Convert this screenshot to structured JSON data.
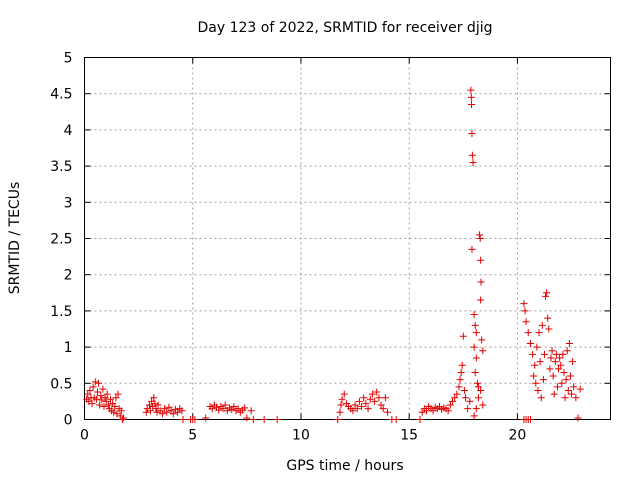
{
  "chart_data": {
    "type": "scatter",
    "title": "Day 123 of 2022, SRMTID for receiver djig",
    "xlabel": "GPS time / hours",
    "ylabel": "SRMTID / TECUs",
    "xlim": [
      0,
      24.3
    ],
    "ylim": [
      0,
      5
    ],
    "xticks": [
      0,
      5,
      10,
      15,
      20
    ],
    "xtick_labels": [
      "0",
      "5",
      "10",
      "15",
      "20"
    ],
    "yticks": [
      0,
      0.5,
      1,
      1.5,
      2,
      2.5,
      3,
      3.5,
      4,
      4.5,
      5
    ],
    "ytick_labels": [
      "0",
      "0.5",
      "1",
      "1.5",
      "2",
      "2.5",
      "3",
      "3.5",
      "4",
      "4.5",
      "5"
    ],
    "grid": true,
    "marker": "+",
    "marker_color": "#e00000",
    "series": [
      {
        "name": "SRMTID",
        "points": [
          [
            0.1,
            0.28
          ],
          [
            0.15,
            0.35
          ],
          [
            0.2,
            0.25
          ],
          [
            0.25,
            0.4
          ],
          [
            0.3,
            0.3
          ],
          [
            0.35,
            0.22
          ],
          [
            0.4,
            0.45
          ],
          [
            0.45,
            0.3
          ],
          [
            0.5,
            0.52
          ],
          [
            0.55,
            0.28
          ],
          [
            0.6,
            0.38
          ],
          [
            0.65,
            0.5
          ],
          [
            0.7,
            0.2
          ],
          [
            0.75,
            0.33
          ],
          [
            0.8,
            0.27
          ],
          [
            0.85,
            0.42
          ],
          [
            0.9,
            0.18
          ],
          [
            0.95,
            0.3
          ],
          [
            1.0,
            0.25
          ],
          [
            1.05,
            0.35
          ],
          [
            1.1,
            0.2
          ],
          [
            1.15,
            0.15
          ],
          [
            1.2,
            0.28
          ],
          [
            1.25,
            0.12
          ],
          [
            1.3,
            0.22
          ],
          [
            1.35,
            0.1
          ],
          [
            1.4,
            0.18
          ],
          [
            1.45,
            0.3
          ],
          [
            1.5,
            0.08
          ],
          [
            1.55,
            0.35
          ],
          [
            1.6,
            0.15
          ],
          [
            1.65,
            0.05
          ],
          [
            1.7,
            0.12
          ],
          [
            1.75,
            0.0
          ],
          [
            1.8,
            0.02
          ],
          [
            2.85,
            0.1
          ],
          [
            2.9,
            0.15
          ],
          [
            3.0,
            0.2
          ],
          [
            3.05,
            0.12
          ],
          [
            3.1,
            0.25
          ],
          [
            3.15,
            0.18
          ],
          [
            3.2,
            0.3
          ],
          [
            3.25,
            0.22
          ],
          [
            3.3,
            0.15
          ],
          [
            3.35,
            0.1
          ],
          [
            3.4,
            0.2
          ],
          [
            3.5,
            0.12
          ],
          [
            3.6,
            0.08
          ],
          [
            3.7,
            0.15
          ],
          [
            3.8,
            0.1
          ],
          [
            3.9,
            0.17
          ],
          [
            4.0,
            0.12
          ],
          [
            4.1,
            0.08
          ],
          [
            4.2,
            0.14
          ],
          [
            4.3,
            0.1
          ],
          [
            4.4,
            0.15
          ],
          [
            4.5,
            0.12
          ],
          [
            4.55,
            0.0
          ],
          [
            4.9,
            0.0
          ],
          [
            5.0,
            0.0
          ],
          [
            5.1,
            0.0
          ],
          [
            5.6,
            0.02
          ],
          [
            5.8,
            0.18
          ],
          [
            5.9,
            0.15
          ],
          [
            6.0,
            0.2
          ],
          [
            6.1,
            0.17
          ],
          [
            6.2,
            0.13
          ],
          [
            6.3,
            0.18
          ],
          [
            6.4,
            0.15
          ],
          [
            6.5,
            0.2
          ],
          [
            6.6,
            0.12
          ],
          [
            6.7,
            0.16
          ],
          [
            6.8,
            0.14
          ],
          [
            6.9,
            0.18
          ],
          [
            7.0,
            0.12
          ],
          [
            7.1,
            0.15
          ],
          [
            7.2,
            0.1
          ],
          [
            7.3,
            0.13
          ],
          [
            7.4,
            0.16
          ],
          [
            7.5,
            0.02
          ],
          [
            7.7,
            0.12
          ],
          [
            7.8,
            0.0
          ],
          [
            8.3,
            0.0
          ],
          [
            8.9,
            0.0
          ],
          [
            11.7,
            0.0
          ],
          [
            11.8,
            0.1
          ],
          [
            11.85,
            0.2
          ],
          [
            11.9,
            0.28
          ],
          [
            12.0,
            0.35
          ],
          [
            12.1,
            0.22
          ],
          [
            12.2,
            0.18
          ],
          [
            12.3,
            0.15
          ],
          [
            12.4,
            0.12
          ],
          [
            12.5,
            0.2
          ],
          [
            12.6,
            0.15
          ],
          [
            12.7,
            0.25
          ],
          [
            12.8,
            0.18
          ],
          [
            12.9,
            0.3
          ],
          [
            13.0,
            0.22
          ],
          [
            13.1,
            0.15
          ],
          [
            13.2,
            0.28
          ],
          [
            13.3,
            0.35
          ],
          [
            13.4,
            0.25
          ],
          [
            13.5,
            0.38
          ],
          [
            13.6,
            0.3
          ],
          [
            13.7,
            0.2
          ],
          [
            13.8,
            0.15
          ],
          [
            13.9,
            0.3
          ],
          [
            14.0,
            0.1
          ],
          [
            14.2,
            0.0
          ],
          [
            14.4,
            0.0
          ],
          [
            15.5,
            0.0
          ],
          [
            15.6,
            0.1
          ],
          [
            15.7,
            0.15
          ],
          [
            15.8,
            0.12
          ],
          [
            15.9,
            0.18
          ],
          [
            16.0,
            0.15
          ],
          [
            16.1,
            0.12
          ],
          [
            16.2,
            0.17
          ],
          [
            16.3,
            0.15
          ],
          [
            16.4,
            0.18
          ],
          [
            16.5,
            0.14
          ],
          [
            16.6,
            0.16
          ],
          [
            16.7,
            0.15
          ],
          [
            16.8,
            0.12
          ],
          [
            16.9,
            0.2
          ],
          [
            17.0,
            0.25
          ],
          [
            17.1,
            0.3
          ],
          [
            17.2,
            0.35
          ],
          [
            17.3,
            0.45
          ],
          [
            17.35,
            0.55
          ],
          [
            17.4,
            0.65
          ],
          [
            17.45,
            0.75
          ],
          [
            17.5,
            1.15
          ],
          [
            17.55,
            0.4
          ],
          [
            17.6,
            0.3
          ],
          [
            17.7,
            0.15
          ],
          [
            17.8,
            0.25
          ],
          [
            17.85,
            4.55
          ],
          [
            17.87,
            4.45
          ],
          [
            17.88,
            4.35
          ],
          [
            17.9,
            3.95
          ],
          [
            17.92,
            3.65
          ],
          [
            17.95,
            3.55
          ],
          [
            17.9,
            2.35
          ],
          [
            18.0,
            1.45
          ],
          [
            18.05,
            1.3
          ],
          [
            18.1,
            1.2
          ],
          [
            18.0,
            1.0
          ],
          [
            18.1,
            0.85
          ],
          [
            18.05,
            0.65
          ],
          [
            18.15,
            0.5
          ],
          [
            18.2,
            0.45
          ],
          [
            18.25,
            2.55
          ],
          [
            18.28,
            2.5
          ],
          [
            18.3,
            2.2
          ],
          [
            18.32,
            1.9
          ],
          [
            18.3,
            1.65
          ],
          [
            18.35,
            1.1
          ],
          [
            18.4,
            0.95
          ],
          [
            18.3,
            0.4
          ],
          [
            18.2,
            0.3
          ],
          [
            18.1,
            0.15
          ],
          [
            18.0,
            0.05
          ],
          [
            18.4,
            0.2
          ],
          [
            20.3,
            1.6
          ],
          [
            20.35,
            1.5
          ],
          [
            20.4,
            1.35
          ],
          [
            20.5,
            1.2
          ],
          [
            20.3,
            0.0
          ],
          [
            20.4,
            0.0
          ],
          [
            20.5,
            0.0
          ],
          [
            20.6,
            0.0
          ],
          [
            20.6,
            1.05
          ],
          [
            20.7,
            0.9
          ],
          [
            20.75,
            0.6
          ],
          [
            20.8,
            0.75
          ],
          [
            20.85,
            0.5
          ],
          [
            20.9,
            1.0
          ],
          [
            20.95,
            0.4
          ],
          [
            21.0,
            1.2
          ],
          [
            21.05,
            0.8
          ],
          [
            21.1,
            0.3
          ],
          [
            21.15,
            1.3
          ],
          [
            21.2,
            0.55
          ],
          [
            21.25,
            0.9
          ],
          [
            21.3,
            1.7
          ],
          [
            21.35,
            1.75
          ],
          [
            21.4,
            1.4
          ],
          [
            21.45,
            1.25
          ],
          [
            21.5,
            0.7
          ],
          [
            21.55,
            0.85
          ],
          [
            21.6,
            0.95
          ],
          [
            21.65,
            0.6
          ],
          [
            21.7,
            0.35
          ],
          [
            21.75,
            0.8
          ],
          [
            21.8,
            0.9
          ],
          [
            21.85,
            0.45
          ],
          [
            21.9,
            0.7
          ],
          [
            21.95,
            0.85
          ],
          [
            22.0,
            0.75
          ],
          [
            22.05,
            0.5
          ],
          [
            22.1,
            0.9
          ],
          [
            22.15,
            0.65
          ],
          [
            22.2,
            0.3
          ],
          [
            22.25,
            0.55
          ],
          [
            22.3,
            0.95
          ],
          [
            22.35,
            0.4
          ],
          [
            22.4,
            1.05
          ],
          [
            22.45,
            0.6
          ],
          [
            22.5,
            0.35
          ],
          [
            22.55,
            0.8
          ],
          [
            22.6,
            0.45
          ],
          [
            22.7,
            0.3
          ],
          [
            22.8,
            0.02
          ],
          [
            22.9,
            0.42
          ]
        ]
      }
    ]
  }
}
